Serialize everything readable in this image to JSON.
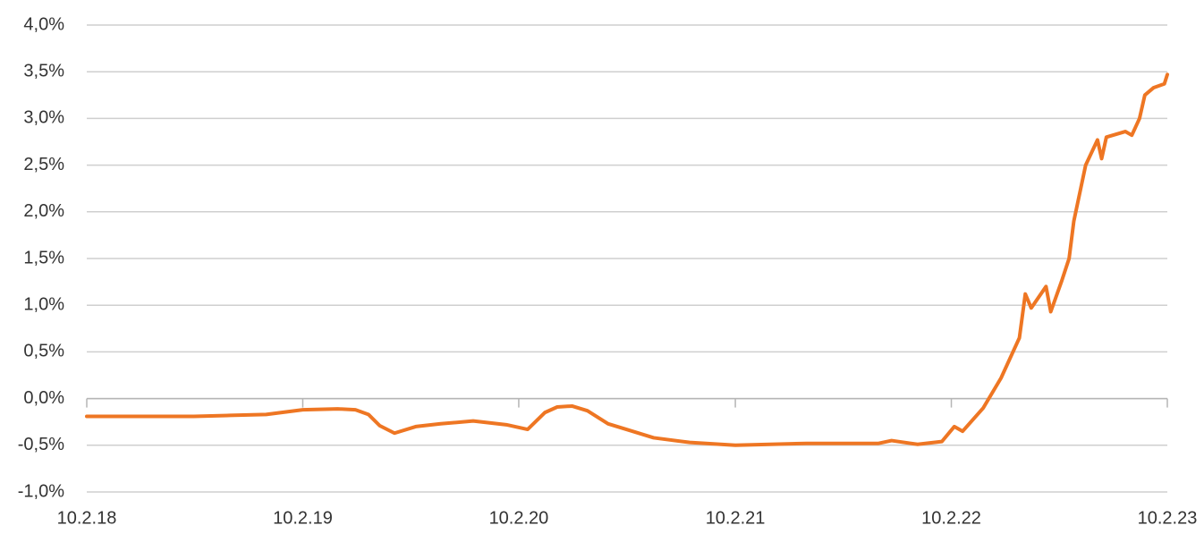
{
  "chart_data": {
    "type": "line",
    "x": [
      "2018-02-10",
      "2018-05-10",
      "2018-08-10",
      "2018-10-10",
      "2018-12-10",
      "2019-02-10",
      "2019-04-10",
      "2019-05-10",
      "2019-06-01",
      "2019-06-20",
      "2019-07-15",
      "2019-08-20",
      "2019-10-01",
      "2019-11-25",
      "2020-01-20",
      "2020-02-25",
      "2020-03-25",
      "2020-04-15",
      "2020-05-10",
      "2020-06-05",
      "2020-07-10",
      "2020-08-10",
      "2020-09-25",
      "2020-11-25",
      "2021-02-10",
      "2021-06-10",
      "2021-10-10",
      "2021-11-01",
      "2021-12-15",
      "2022-01-25",
      "2022-02-15",
      "2022-03-01",
      "2022-04-05",
      "2022-05-05",
      "2022-06-05",
      "2022-06-15",
      "2022-06-25",
      "2022-07-20",
      "2022-07-28",
      "2022-08-15",
      "2022-08-28",
      "2022-09-05",
      "2022-09-25",
      "2022-10-15",
      "2022-10-22",
      "2022-10-30",
      "2022-12-01",
      "2022-12-12",
      "2022-12-25",
      "2023-01-03",
      "2023-01-18",
      "2023-02-05",
      "2023-02-10"
    ],
    "series": [
      {
        "color": "#ee7623",
        "values": [
          -0.19,
          -0.19,
          -0.19,
          -0.18,
          -0.17,
          -0.12,
          -0.11,
          -0.12,
          -0.17,
          -0.29,
          -0.37,
          -0.3,
          -0.27,
          -0.24,
          -0.28,
          -0.33,
          -0.15,
          -0.09,
          -0.08,
          -0.13,
          -0.27,
          -0.33,
          -0.42,
          -0.47,
          -0.5,
          -0.48,
          -0.48,
          -0.45,
          -0.49,
          -0.46,
          -0.3,
          -0.35,
          -0.1,
          0.22,
          0.65,
          1.12,
          0.97,
          1.2,
          0.93,
          1.25,
          1.5,
          1.9,
          2.5,
          2.77,
          2.57,
          2.8,
          2.86,
          2.82,
          3.0,
          3.25,
          3.33,
          3.37,
          3.47
        ]
      }
    ],
    "xlim": [
      "2018-02-10",
      "2023-02-10"
    ],
    "xticks": [
      {
        "value": "2018-02-10",
        "label": "10.2.18"
      },
      {
        "value": "2019-02-10",
        "label": "10.2.19"
      },
      {
        "value": "2020-02-10",
        "label": "10.2.20"
      },
      {
        "value": "2021-02-10",
        "label": "10.2.21"
      },
      {
        "value": "2022-02-10",
        "label": "10.2.22"
      },
      {
        "value": "2023-02-10",
        "label": "10.2.23"
      }
    ],
    "ylim": [
      -1.0,
      4.0
    ],
    "yticks": [
      {
        "value": -1.0,
        "label": "-1,0%"
      },
      {
        "value": -0.5,
        "label": "-0,5%"
      },
      {
        "value": 0.0,
        "label": "0,0%"
      },
      {
        "value": 0.5,
        "label": "0,5%"
      },
      {
        "value": 1.0,
        "label": "1,0%"
      },
      {
        "value": 1.5,
        "label": "1,5%"
      },
      {
        "value": 2.0,
        "label": "2,0%"
      },
      {
        "value": 2.5,
        "label": "2,5%"
      },
      {
        "value": 3.0,
        "label": "3,0%"
      },
      {
        "value": 3.5,
        "label": "3,5%"
      },
      {
        "value": 4.0,
        "label": "4,0%"
      }
    ],
    "grid": true
  }
}
